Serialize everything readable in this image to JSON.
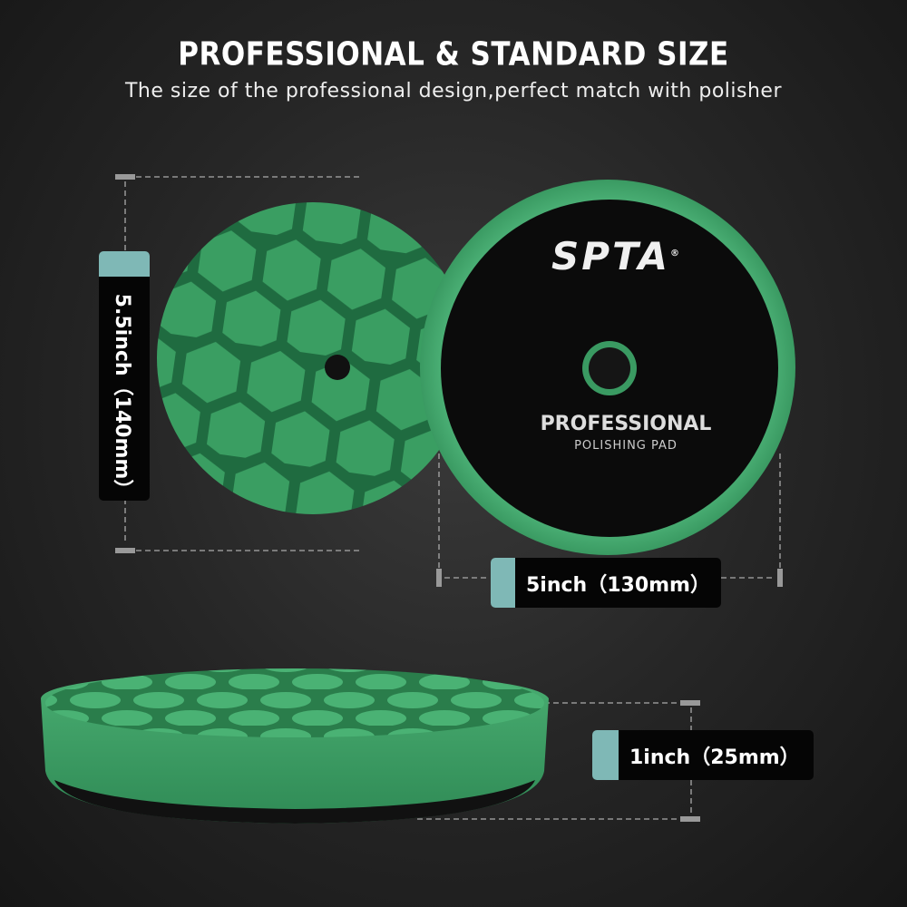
{
  "header": {
    "title": "PROFESSIONAL & STANDARD SIZE",
    "subtitle": "The size of the professional design,perfect match with polisher"
  },
  "product": {
    "brand": "SPTA",
    "center_text": "PROFESSIONAL",
    "center_subtext": "POLISHING PAD",
    "pad_color": "#3fa56a",
    "center_color": "#0a0a0a"
  },
  "dimensions": {
    "diameter_label": "5.5inch（140mm）",
    "backing_label": "5inch（130mm）",
    "thickness_label": "1inch（25mm）",
    "accent_color": "#7fb8b6"
  }
}
